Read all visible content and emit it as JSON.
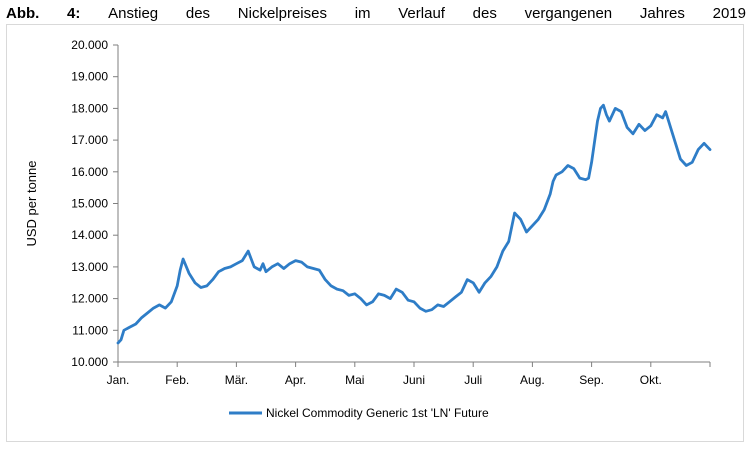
{
  "caption": {
    "words": [
      "Abb.",
      "4:",
      "Anstieg",
      "des",
      "Nickelpreises",
      "im",
      "Verlauf",
      "des",
      "vergangenen",
      "Jahres",
      "2019"
    ]
  },
  "chart_data": {
    "type": "line",
    "title": "",
    "xlabel": "",
    "ylabel": "USD per tonne",
    "ylim": [
      10000,
      20000
    ],
    "yticks": [
      "10.000",
      "11.000",
      "12.000",
      "13.000",
      "14.000",
      "15.000",
      "16.000",
      "17.000",
      "18.000",
      "19.000",
      "20.000"
    ],
    "xtick_labels": [
      "Jan.",
      "Feb.",
      "Mär.",
      "Apr.",
      "Mai",
      "Juni",
      "Juli",
      "Aug.",
      "Sep.",
      "Okt."
    ],
    "grid": false,
    "legend_position": "bottom",
    "series": [
      {
        "name": "Nickel Commodity Generic 1st 'LN' Future",
        "color": "#2e7dc7",
        "x_month": [
          0.0,
          0.05,
          0.1,
          0.2,
          0.3,
          0.4,
          0.5,
          0.6,
          0.7,
          0.8,
          0.9,
          1.0,
          1.05,
          1.1,
          1.2,
          1.3,
          1.4,
          1.5,
          1.6,
          1.7,
          1.75,
          1.8,
          1.9,
          2.0,
          2.1,
          2.2,
          2.3,
          2.4,
          2.45,
          2.5,
          2.6,
          2.7,
          2.8,
          2.9,
          3.0,
          3.1,
          3.2,
          3.3,
          3.4,
          3.5,
          3.6,
          3.7,
          3.8,
          3.9,
          4.0,
          4.1,
          4.2,
          4.3,
          4.4,
          4.5,
          4.6,
          4.7,
          4.8,
          4.9,
          5.0,
          5.1,
          5.2,
          5.3,
          5.4,
          5.5,
          5.6,
          5.7,
          5.8,
          5.9,
          6.0,
          6.1,
          6.2,
          6.3,
          6.4,
          6.5,
          6.6,
          6.7,
          6.8,
          6.9,
          7.0,
          7.1,
          7.2,
          7.3,
          7.35,
          7.4,
          7.5,
          7.6,
          7.7,
          7.8,
          7.9,
          7.95,
          8.0,
          8.1,
          8.15,
          8.2,
          8.25,
          8.3,
          8.4,
          8.5,
          8.6,
          8.7,
          8.8,
          8.9,
          9.0,
          9.1,
          9.2,
          9.25,
          9.3,
          9.4,
          9.5,
          9.6,
          9.7,
          9.8,
          9.9,
          9.95,
          10.0
        ],
        "values": [
          10600,
          10700,
          11000,
          11100,
          11200,
          11400,
          11550,
          11700,
          11800,
          11700,
          11900,
          12400,
          12900,
          13250,
          12800,
          12500,
          12350,
          12400,
          12600,
          12850,
          12900,
          12950,
          13000,
          13100,
          13200,
          13500,
          13000,
          12900,
          13100,
          12850,
          13000,
          13100,
          12950,
          13100,
          13200,
          13150,
          13000,
          12950,
          12900,
          12600,
          12400,
          12300,
          12250,
          12100,
          12150,
          12000,
          11800,
          11900,
          12150,
          12100,
          12000,
          12300,
          12200,
          11950,
          11900,
          11700,
          11600,
          11650,
          11800,
          11750,
          11900,
          12050,
          12200,
          12600,
          12500,
          12200,
          12500,
          12700,
          13000,
          13500,
          13800,
          14700,
          14500,
          14100,
          14300,
          14500,
          14800,
          15300,
          15700,
          15900,
          16000,
          16200,
          16100,
          15800,
          15750,
          15800,
          16300,
          17600,
          18000,
          18100,
          17800,
          17600,
          18000,
          17900,
          17400,
          17200,
          17500,
          17300,
          17450,
          17800,
          17700,
          17900,
          17600,
          17000,
          16400,
          16200,
          16300,
          16700,
          16900,
          16800,
          16700
        ]
      }
    ]
  }
}
